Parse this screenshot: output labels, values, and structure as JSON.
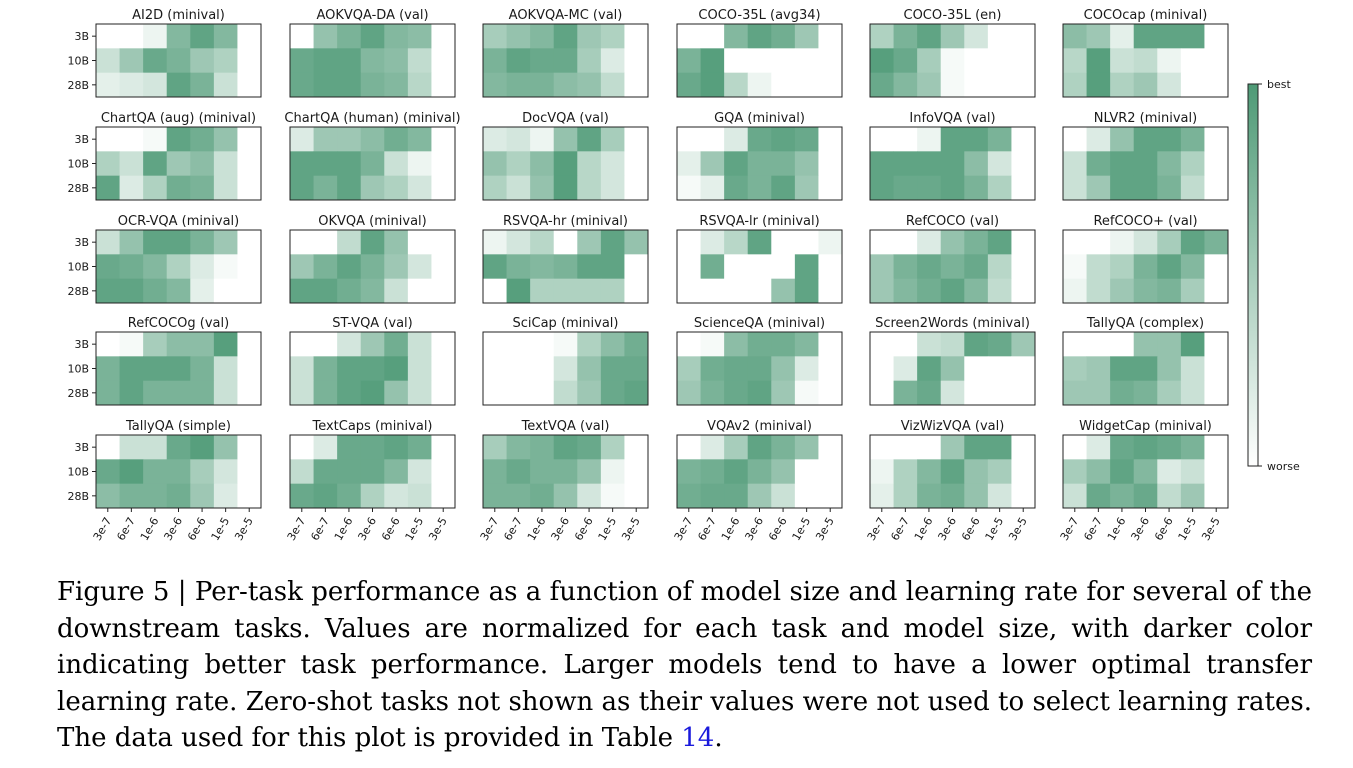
{
  "chart_data": {
    "type": "heatmap",
    "row_labels": [
      "3B",
      "10B",
      "28B"
    ],
    "column_labels": [
      "3e-7",
      "6e-7",
      "1e-6",
      "3e-6",
      "6e-6",
      "1e-5",
      "3e-5"
    ],
    "colorbar": {
      "top_label": "best",
      "bottom_label": "worse",
      "scale": [
        0,
        1
      ]
    },
    "color_low": "#ffffff",
    "color_high": "#4e9a76",
    "panels": [
      {
        "title": "AI2D (minival)",
        "values": [
          [
            0,
            0,
            0.1,
            0.7,
            0.9,
            0.7,
            0
          ],
          [
            0.3,
            0.55,
            0.85,
            0.75,
            0.55,
            0.45,
            0
          ],
          [
            0.15,
            0.2,
            0.25,
            0.9,
            0.75,
            0.3,
            0
          ]
        ]
      },
      {
        "title": "AOKVQA-DA (val)",
        "values": [
          [
            0,
            0.6,
            0.75,
            0.9,
            0.7,
            0.65,
            0
          ],
          [
            0.85,
            0.9,
            0.9,
            0.7,
            0.65,
            0.35,
            0
          ],
          [
            0.85,
            0.9,
            0.9,
            0.75,
            0.7,
            0.4,
            0
          ]
        ]
      },
      {
        "title": "AOKVQA-MC (val)",
        "values": [
          [
            0.5,
            0.6,
            0.7,
            0.9,
            0.55,
            0.45,
            0
          ],
          [
            0.75,
            0.9,
            0.85,
            0.85,
            0.5,
            0.2,
            0
          ],
          [
            0.7,
            0.75,
            0.75,
            0.65,
            0.6,
            0.35,
            0
          ]
        ]
      },
      {
        "title": "COCO-35L (avg34)",
        "values": [
          [
            0,
            0,
            0.7,
            0.9,
            0.8,
            0.55,
            0
          ],
          [
            0.75,
            0.95,
            0,
            0,
            0,
            0,
            0
          ],
          [
            0.85,
            0.95,
            0.4,
            0.1,
            0,
            0,
            0
          ]
        ]
      },
      {
        "title": "COCO-35L (en)",
        "values": [
          [
            0.45,
            0.75,
            0.9,
            0.55,
            0.25,
            0,
            0
          ],
          [
            0.95,
            0.85,
            0.5,
            0.05,
            0,
            0,
            0
          ],
          [
            0.85,
            0.7,
            0.55,
            0.05,
            0,
            0,
            0
          ]
        ]
      },
      {
        "title": "COCOcap (minival)",
        "values": [
          [
            0.65,
            0.55,
            0.15,
            0.9,
            0.9,
            0.9,
            0
          ],
          [
            0.4,
            0.95,
            0.3,
            0.35,
            0.1,
            0,
            0
          ],
          [
            0.45,
            0.95,
            0.45,
            0.55,
            0.25,
            0,
            0
          ]
        ]
      },
      {
        "title": "ChartQA (aug) (minival)",
        "values": [
          [
            0,
            0,
            0.05,
            0.9,
            0.8,
            0.6,
            0
          ],
          [
            0.45,
            0.3,
            0.9,
            0.55,
            0.65,
            0.3,
            0
          ],
          [
            0.9,
            0.2,
            0.45,
            0.8,
            0.75,
            0.3,
            0
          ]
        ]
      },
      {
        "title": "ChartQA (human) (minival)",
        "values": [
          [
            0.2,
            0.55,
            0.55,
            0.65,
            0.8,
            0.7,
            0
          ],
          [
            0.9,
            0.9,
            0.9,
            0.75,
            0.3,
            0.1,
            0
          ],
          [
            0.9,
            0.75,
            0.9,
            0.55,
            0.45,
            0.25,
            0
          ]
        ]
      },
      {
        "title": "DocVQA (val)",
        "values": [
          [
            0.2,
            0.25,
            0.1,
            0.6,
            0.9,
            0.5,
            0
          ],
          [
            0.6,
            0.45,
            0.65,
            0.95,
            0.4,
            0.25,
            0
          ],
          [
            0.45,
            0.3,
            0.6,
            0.95,
            0.4,
            0.25,
            0
          ]
        ]
      },
      {
        "title": "GQA (minival)",
        "values": [
          [
            0,
            0,
            0.2,
            0.85,
            0.9,
            0.85,
            0
          ],
          [
            0.15,
            0.55,
            0.9,
            0.75,
            0.75,
            0.6,
            0
          ],
          [
            0.05,
            0.15,
            0.85,
            0.75,
            0.9,
            0.55,
            0
          ]
        ]
      },
      {
        "title": "InfoVQA (val)",
        "values": [
          [
            0,
            0,
            0.1,
            0.9,
            0.9,
            0.75,
            0
          ],
          [
            0.9,
            0.9,
            0.9,
            0.9,
            0.65,
            0.25,
            0
          ],
          [
            0.9,
            0.85,
            0.85,
            0.9,
            0.75,
            0.45,
            0
          ]
        ]
      },
      {
        "title": "NLVR2 (minival)",
        "values": [
          [
            0,
            0.2,
            0.6,
            0.9,
            0.9,
            0.75,
            0
          ],
          [
            0.3,
            0.8,
            0.9,
            0.9,
            0.7,
            0.45,
            0
          ],
          [
            0.3,
            0.55,
            0.9,
            0.9,
            0.75,
            0.35,
            0
          ]
        ]
      },
      {
        "title": "OCR-VQA (minival)",
        "values": [
          [
            0.3,
            0.6,
            0.9,
            0.9,
            0.75,
            0.55,
            0
          ],
          [
            0.85,
            0.8,
            0.7,
            0.45,
            0.2,
            0.05,
            0
          ],
          [
            0.9,
            0.9,
            0.8,
            0.7,
            0.15,
            0,
            0
          ]
        ]
      },
      {
        "title": "OKVQA (minival)",
        "values": [
          [
            0,
            0,
            0.35,
            0.9,
            0.6,
            0,
            0
          ],
          [
            0.55,
            0.75,
            0.9,
            0.75,
            0.55,
            0.25,
            0
          ],
          [
            0.9,
            0.9,
            0.8,
            0.7,
            0.3,
            0,
            0
          ]
        ]
      },
      {
        "title": "RSVQA-hr (minival)",
        "values": [
          [
            0.1,
            0.25,
            0.4,
            0,
            0.55,
            0.9,
            0.6
          ],
          [
            0.9,
            0.75,
            0.7,
            0.75,
            0.9,
            0.9,
            0
          ],
          [
            0,
            0.95,
            0.45,
            0.45,
            0.45,
            0.45,
            0
          ]
        ]
      },
      {
        "title": "RSVQA-lr (minival)",
        "values": [
          [
            0,
            0.2,
            0.4,
            0.9,
            0,
            0,
            0.1
          ],
          [
            0,
            0.8,
            0,
            0,
            0,
            0.9,
            0
          ],
          [
            0,
            0,
            0,
            0,
            0.6,
            0.9,
            0
          ]
        ]
      },
      {
        "title": "RefCOCO (val)",
        "values": [
          [
            0,
            0,
            0.2,
            0.6,
            0.75,
            0.9,
            0
          ],
          [
            0.55,
            0.75,
            0.85,
            0.75,
            0.85,
            0.4,
            0
          ],
          [
            0.55,
            0.7,
            0.8,
            0.9,
            0.7,
            0.35,
            0
          ]
        ]
      },
      {
        "title": "RefCOCO+ (val)",
        "values": [
          [
            0,
            0,
            0.1,
            0.25,
            0.5,
            0.9,
            0.75
          ],
          [
            0.05,
            0.35,
            0.45,
            0.75,
            0.9,
            0.7,
            0
          ],
          [
            0.1,
            0.35,
            0.55,
            0.7,
            0.75,
            0.5,
            0
          ]
        ]
      },
      {
        "title": "RefCOCOg (val)",
        "values": [
          [
            0,
            0.05,
            0.5,
            0.65,
            0.65,
            0.95,
            0
          ],
          [
            0.75,
            0.9,
            0.9,
            0.9,
            0.75,
            0.3,
            0
          ],
          [
            0.75,
            0.9,
            0.75,
            0.75,
            0.75,
            0.3,
            0
          ]
        ]
      },
      {
        "title": "ST-VQA (val)",
        "values": [
          [
            0,
            0,
            0.25,
            0.55,
            0.8,
            0.3,
            0
          ],
          [
            0.3,
            0.75,
            0.9,
            0.9,
            0.95,
            0.3,
            0
          ],
          [
            0.3,
            0.75,
            0.9,
            0.95,
            0.6,
            0.3,
            0
          ]
        ]
      },
      {
        "title": "SciCap (minival)",
        "values": [
          [
            0,
            0,
            0,
            0.05,
            0.45,
            0.65,
            0.8
          ],
          [
            0,
            0,
            0,
            0.25,
            0.6,
            0.85,
            0.85
          ],
          [
            0,
            0,
            0,
            0.35,
            0.55,
            0.85,
            0.9
          ]
        ]
      },
      {
        "title": "ScienceQA (minival)",
        "values": [
          [
            0,
            0.05,
            0.65,
            0.8,
            0.8,
            0.7,
            0
          ],
          [
            0.5,
            0.8,
            0.85,
            0.85,
            0.6,
            0.2,
            0
          ],
          [
            0.55,
            0.75,
            0.85,
            0.9,
            0.55,
            0.05,
            0
          ]
        ]
      },
      {
        "title": "Screen2Words (minival)",
        "values": [
          [
            0,
            0,
            0.3,
            0.35,
            0.9,
            0.85,
            0.55
          ],
          [
            0,
            0.2,
            0.9,
            0.6,
            0,
            0,
            0
          ],
          [
            0,
            0.75,
            0.85,
            0.25,
            0,
            0,
            0
          ]
        ]
      },
      {
        "title": "TallyQA (complex)",
        "values": [
          [
            0,
            0,
            0,
            0.6,
            0.6,
            0.95,
            0
          ],
          [
            0.5,
            0.55,
            0.9,
            0.9,
            0.6,
            0.3,
            0
          ],
          [
            0.55,
            0.55,
            0.8,
            0.75,
            0.5,
            0.3,
            0
          ]
        ]
      },
      {
        "title": "TallyQA (simple)",
        "values": [
          [
            0,
            0.3,
            0.3,
            0.85,
            0.95,
            0.6,
            0
          ],
          [
            0.85,
            0.95,
            0.75,
            0.75,
            0.5,
            0.25,
            0
          ],
          [
            0.65,
            0.75,
            0.75,
            0.8,
            0.55,
            0.2,
            0
          ]
        ]
      },
      {
        "title": "TextCaps (minival)",
        "values": [
          [
            0,
            0.2,
            0.85,
            0.85,
            0.9,
            0.8,
            0
          ],
          [
            0.35,
            0.85,
            0.85,
            0.85,
            0.7,
            0.25,
            0
          ],
          [
            0.85,
            0.9,
            0.8,
            0.45,
            0.25,
            0.3,
            0
          ]
        ]
      },
      {
        "title": "TextVQA (val)",
        "values": [
          [
            0.5,
            0.7,
            0.75,
            0.9,
            0.85,
            0.45,
            0
          ],
          [
            0.75,
            0.85,
            0.75,
            0.75,
            0.6,
            0.1,
            0
          ],
          [
            0.75,
            0.75,
            0.8,
            0.6,
            0.25,
            0.05,
            0
          ]
        ]
      },
      {
        "title": "VQAv2 (minival)",
        "values": [
          [
            0,
            0.2,
            0.5,
            0.9,
            0.75,
            0.6,
            0
          ],
          [
            0.75,
            0.8,
            0.9,
            0.75,
            0.6,
            0,
            0
          ],
          [
            0.8,
            0.85,
            0.85,
            0.55,
            0.3,
            0,
            0
          ]
        ]
      },
      {
        "title": "VizWizVQA (val)",
        "values": [
          [
            0,
            0,
            0,
            0.55,
            0.9,
            0.9,
            0
          ],
          [
            0.1,
            0.45,
            0.7,
            0.9,
            0.6,
            0.5,
            0
          ],
          [
            0.15,
            0.45,
            0.75,
            0.8,
            0.6,
            0.25,
            0
          ]
        ]
      },
      {
        "title": "WidgetCap (minival)",
        "values": [
          [
            0,
            0.2,
            0.85,
            0.9,
            0.85,
            0.75,
            0
          ],
          [
            0.5,
            0.65,
            0.9,
            0.7,
            0.2,
            0.3,
            0
          ],
          [
            0.3,
            0.85,
            0.75,
            0.85,
            0.35,
            0.55,
            0
          ]
        ]
      }
    ]
  },
  "caption": {
    "text_before_link": "Figure 5 | Per-task performance as a function of model size and learning rate for several of the downstream tasks. Values are normalized for each task and model size, with darker color indicating better task performance. Larger models tend to have a lower optimal transfer learning rate. Zero-shot tasks not shown as their values were not used to select learning rates. The data used for this plot is provided in Table ",
    "link_text": "14",
    "text_after_link": "."
  }
}
